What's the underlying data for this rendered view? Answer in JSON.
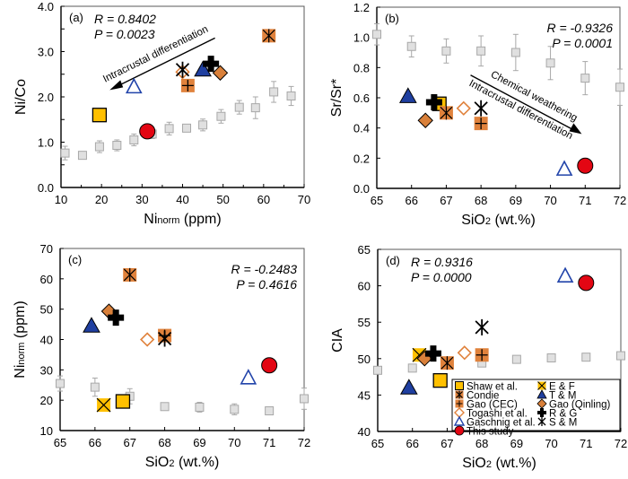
{
  "figure": {
    "title": ""
  },
  "legend": {
    "placement": "bottom-right of panel (d)",
    "entries": [
      {
        "series": "shaw",
        "label": "Shaw et al."
      },
      {
        "series": "ef",
        "label": "E & F"
      },
      {
        "series": "condie",
        "label": "Condie"
      },
      {
        "series": "tm",
        "label": "T & M"
      },
      {
        "series": "gao_cec",
        "label": "Gao (CEC)"
      },
      {
        "series": "gao_qinling",
        "label": "Gao (Qinling)"
      },
      {
        "series": "togashi",
        "label": "Togashi et al."
      },
      {
        "series": "rg",
        "label": "R & G"
      },
      {
        "series": "gaschnig",
        "label": "Gaschnig et al."
      },
      {
        "series": "sm",
        "label": "S & M"
      },
      {
        "series": "this_study",
        "label": "This study"
      }
    ]
  },
  "markers": {
    "shaw": {
      "shape": "square",
      "fill": "#FFC000",
      "stroke": "#000000"
    },
    "ef": {
      "shape": "square-x",
      "fill": "#FFC000",
      "stroke": "#000000"
    },
    "condie": {
      "shape": "square-asterisk",
      "fill": "#E0823C",
      "stroke": "#000000"
    },
    "tm": {
      "shape": "triangle",
      "fill": "#1F3FA0",
      "stroke": "#000000"
    },
    "gao_cec": {
      "shape": "square-plus",
      "fill": "#E0823C",
      "stroke": "#000000"
    },
    "gao_qinling": {
      "shape": "diamond",
      "fill": "#D9803A",
      "stroke": "#000000"
    },
    "togashi": {
      "shape": "open-diamond",
      "fill": "none",
      "stroke": "#E0823C"
    },
    "rg": {
      "shape": "bold-plus",
      "fill": "#000000",
      "stroke": "#000000"
    },
    "gaschnig": {
      "shape": "open-triangle",
      "fill": "none",
      "stroke": "#2244AA"
    },
    "sm": {
      "shape": "asterisk",
      "fill": "none",
      "stroke": "#000000"
    },
    "this_study": {
      "shape": "circle",
      "fill": "#E30613",
      "stroke": "#000000"
    },
    "background": {
      "shape": "open-square-errorbar",
      "fill": "#E0E0E0",
      "stroke": "#A8A8A8"
    }
  },
  "chart_data": [
    {
      "panel": "(a)",
      "type": "scatter",
      "xlabel": "Ni",
      "xlabel_sub": "norm",
      "xlabel_tail": " (ppm)",
      "ylabel": "Ni/Co",
      "xlim": [
        10,
        70
      ],
      "ylim": [
        0.0,
        4.0
      ],
      "xticks": [
        10,
        20,
        30,
        40,
        50,
        60,
        70
      ],
      "xtick_labels": [
        "10",
        "20",
        "30",
        "40",
        "50",
        "60",
        "70"
      ],
      "yticks": [
        0.0,
        1.0,
        2.0,
        3.0,
        4.0
      ],
      "ytick_labels": [
        "0.0",
        "1.0",
        "2.0",
        "3.0",
        "4.0"
      ],
      "yminor": [
        0.5,
        1.5,
        2.5,
        3.5
      ],
      "xminor": [
        15,
        25,
        35,
        45,
        55,
        65
      ],
      "stats": {
        "R": "R = 0.8402",
        "P": "P = 0.0023",
        "position": "top-left"
      },
      "annotations": [
        {
          "text": "Intracrustal differentiation",
          "arrow_from": [
            48,
            3.3
          ],
          "arrow_to": [
            22,
            2.15
          ]
        }
      ],
      "background_series": [
        {
          "x": 11,
          "y": 0.76,
          "err": 0.15
        },
        {
          "x": 15.3,
          "y": 0.71,
          "err": 0.08
        },
        {
          "x": 19.5,
          "y": 0.9,
          "err": 0.13
        },
        {
          "x": 23.8,
          "y": 0.93,
          "err": 0.12
        },
        {
          "x": 28,
          "y": 1.05,
          "err": 0.13
        },
        {
          "x": 32.5,
          "y": 1.18,
          "err": 0.1
        },
        {
          "x": 36.7,
          "y": 1.3,
          "err": 0.14
        },
        {
          "x": 41,
          "y": 1.31,
          "err": 0.07
        },
        {
          "x": 45,
          "y": 1.38,
          "err": 0.13
        },
        {
          "x": 49.5,
          "y": 1.57,
          "err": 0.15
        },
        {
          "x": 54,
          "y": 1.77,
          "err": 0.15
        },
        {
          "x": 58,
          "y": 1.76,
          "err": 0.24
        },
        {
          "x": 62.5,
          "y": 2.11,
          "err": 0.23
        },
        {
          "x": 66.8,
          "y": 2.02,
          "err": 0.21
        }
      ],
      "points": [
        {
          "series": "shaw",
          "x": 19.5,
          "y": 1.6
        },
        {
          "series": "this_study",
          "x": 31.3,
          "y": 1.24
        },
        {
          "series": "gaschnig",
          "x": 28,
          "y": 2.23
        },
        {
          "series": "togashi",
          "x": 40,
          "y": 2.55
        },
        {
          "series": "sm",
          "x": 40,
          "y": 2.6
        },
        {
          "series": "gao_cec",
          "x": 41.3,
          "y": 2.25
        },
        {
          "series": "tm",
          "x": 45,
          "y": 2.6
        },
        {
          "series": "rg",
          "x": 47,
          "y": 2.73
        },
        {
          "series": "gao_qinling",
          "x": 49.3,
          "y": 2.53
        },
        {
          "series": "condie",
          "x": 61.3,
          "y": 3.35
        }
      ]
    },
    {
      "panel": "(b)",
      "type": "scatter",
      "xlabel": "SiO",
      "xlabel_sub": "2",
      "xlabel_tail": " (wt.%)",
      "ylabel": "Sr/Sr*",
      "xlim": [
        65,
        72
      ],
      "ylim": [
        0.0,
        1.2
      ],
      "xticks": [
        65,
        66,
        67,
        68,
        69,
        70,
        71,
        72
      ],
      "xtick_labels": [
        "65",
        "66",
        "67",
        "68",
        "69",
        "70",
        "71",
        "72"
      ],
      "yticks": [
        0.0,
        0.2,
        0.4,
        0.6,
        0.8,
        1.0,
        1.2
      ],
      "ytick_labels": [
        "0.0",
        "0.2",
        "0.4",
        "0.6",
        "0.8",
        "1.0",
        "1.2"
      ],
      "yminor": [],
      "xminor": [],
      "stats": {
        "R": "R = -0.9326",
        "P": "P = 0.0001",
        "position": "top-right"
      },
      "annotations": [
        {
          "text": "Chemical weathering",
          "arrow_from": [
            67.7,
            0.75
          ],
          "arrow_to": [
            70.9,
            0.36
          ]
        },
        {
          "text": "Intracrustal differentiation",
          "arrow_from": null,
          "arrow_to": null
        }
      ],
      "background_series": [
        {
          "x": 65,
          "y": 1.02,
          "err": 0.07
        },
        {
          "x": 66,
          "y": 0.94,
          "err": 0.07
        },
        {
          "x": 67,
          "y": 0.91,
          "err": 0.08
        },
        {
          "x": 68,
          "y": 0.91,
          "err": 0.1
        },
        {
          "x": 69,
          "y": 0.9,
          "err": 0.12
        },
        {
          "x": 70,
          "y": 0.83,
          "err": 0.11
        },
        {
          "x": 71,
          "y": 0.73,
          "err": 0.11
        },
        {
          "x": 72,
          "y": 0.67,
          "err": 0.12
        }
      ],
      "points": [
        {
          "series": "tm",
          "x": 65.9,
          "y": 0.61
        },
        {
          "series": "gao_qinling",
          "x": 66.4,
          "y": 0.45
        },
        {
          "series": "shaw",
          "x": 66.8,
          "y": 0.56
        },
        {
          "series": "rg",
          "x": 66.65,
          "y": 0.57
        },
        {
          "series": "condie",
          "x": 67,
          "y": 0.5
        },
        {
          "series": "togashi",
          "x": 67.5,
          "y": 0.53
        },
        {
          "series": "sm",
          "x": 68,
          "y": 0.53
        },
        {
          "series": "gao_cec",
          "x": 68,
          "y": 0.43
        },
        {
          "series": "gaschnig",
          "x": 70.4,
          "y": 0.13
        },
        {
          "series": "this_study",
          "x": 71,
          "y": 0.15
        }
      ]
    },
    {
      "panel": "(c)",
      "type": "scatter",
      "xlabel": "SiO",
      "xlabel_sub": "2",
      "xlabel_tail": " (wt.%)",
      "ylabel": "Ni",
      "ylabel_sub": "norm",
      "ylabel_tail": " (ppm)",
      "xlim": [
        65,
        72
      ],
      "ylim": [
        10,
        70
      ],
      "xticks": [
        65,
        66,
        67,
        68,
        69,
        70,
        71,
        72
      ],
      "xtick_labels": [
        "65",
        "66",
        "67",
        "68",
        "69",
        "70",
        "71",
        "72"
      ],
      "yticks": [
        10,
        20,
        30,
        40,
        50,
        60,
        70
      ],
      "ytick_labels": [
        "10",
        "20",
        "30",
        "40",
        "50",
        "60",
        "70"
      ],
      "yminor": [],
      "xminor": [],
      "stats": {
        "R": "R = -0.2483",
        "P": "P = 0.4616",
        "position": "top-right"
      },
      "annotations": [],
      "background_series": [
        {
          "x": 65,
          "y": 25.5,
          "err": 2.5
        },
        {
          "x": 66,
          "y": 24.3,
          "err": 3.0
        },
        {
          "x": 67,
          "y": 21.3,
          "err": 2.5
        },
        {
          "x": 68,
          "y": 17.9,
          "err": 0.8
        },
        {
          "x": 69,
          "y": 17.7,
          "err": 1.6
        },
        {
          "x": 70,
          "y": 17.0,
          "err": 1.8
        },
        {
          "x": 71,
          "y": 16.5,
          "err": 1.3
        },
        {
          "x": 72,
          "y": 20.5,
          "err": 3.5
        }
      ],
      "points": [
        {
          "series": "tm",
          "x": 65.9,
          "y": 44.5
        },
        {
          "series": "gao_qinling",
          "x": 66.4,
          "y": 49.3
        },
        {
          "series": "rg",
          "x": 66.6,
          "y": 47.2
        },
        {
          "series": "condie",
          "x": 67,
          "y": 61.3
        },
        {
          "series": "togashi",
          "x": 67.5,
          "y": 40
        },
        {
          "series": "gao_cec",
          "x": 68,
          "y": 41.3
        },
        {
          "series": "sm",
          "x": 68,
          "y": 40.3
        },
        {
          "series": "ef",
          "x": 66.25,
          "y": 18.4
        },
        {
          "series": "shaw",
          "x": 66.8,
          "y": 19.6
        },
        {
          "series": "gaschnig",
          "x": 70.4,
          "y": 27.5
        },
        {
          "series": "this_study",
          "x": 71,
          "y": 31.5
        }
      ]
    },
    {
      "panel": "(d)",
      "type": "scatter",
      "xlabel": "SiO",
      "xlabel_sub": "2",
      "xlabel_tail": " (wt.%)",
      "ylabel": "CIA",
      "xlim": [
        65,
        72
      ],
      "ylim": [
        40,
        65
      ],
      "xticks": [
        65,
        66,
        67,
        68,
        69,
        70,
        71,
        72
      ],
      "xtick_labels": [
        "65",
        "66",
        "67",
        "68",
        "69",
        "70",
        "71",
        "72"
      ],
      "yticks": [
        40,
        45,
        50,
        55,
        60,
        65
      ],
      "ytick_labels": [
        "40",
        "45",
        "50",
        "55",
        "60",
        "65"
      ],
      "yminor": [],
      "xminor": [],
      "stats": {
        "R": "R = 0.9316",
        "P": "P = 0.0000",
        "position": "top-left"
      },
      "annotations": [],
      "background_series": [
        {
          "x": 65,
          "y": 48.4,
          "err": 0
        },
        {
          "x": 66,
          "y": 48.7,
          "err": 0
        },
        {
          "x": 67,
          "y": 49.2,
          "err": 0
        },
        {
          "x": 68,
          "y": 49.4,
          "err": 0
        },
        {
          "x": 69,
          "y": 49.9,
          "err": 0
        },
        {
          "x": 70,
          "y": 50.1,
          "err": 0
        },
        {
          "x": 71,
          "y": 50.2,
          "err": 0
        },
        {
          "x": 72,
          "y": 50.4,
          "err": 0
        }
      ],
      "points": [
        {
          "series": "tm",
          "x": 65.9,
          "y": 46.0
        },
        {
          "series": "ef",
          "x": 66.2,
          "y": 50.5
        },
        {
          "series": "gao_qinling",
          "x": 66.35,
          "y": 50.0
        },
        {
          "series": "rg",
          "x": 66.6,
          "y": 50.7
        },
        {
          "series": "shaw",
          "x": 66.8,
          "y": 47.0
        },
        {
          "series": "condie",
          "x": 67,
          "y": 49.4
        },
        {
          "series": "togashi",
          "x": 67.5,
          "y": 50.8
        },
        {
          "series": "gao_cec",
          "x": 68,
          "y": 50.5
        },
        {
          "series": "sm",
          "x": 68,
          "y": 54.3
        },
        {
          "series": "gaschnig",
          "x": 70.4,
          "y": 61.4
        },
        {
          "series": "this_study",
          "x": 71,
          "y": 60.4
        }
      ]
    }
  ]
}
